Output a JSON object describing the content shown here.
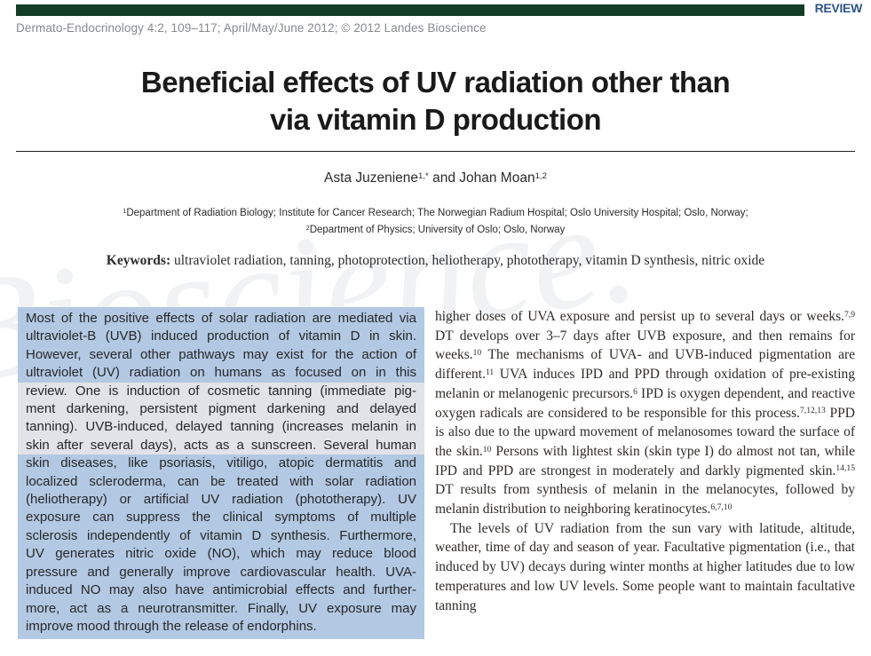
{
  "header": {
    "review_label": "REVIEW",
    "journal_line": "Dermato-Endocrinology 4:2, 109–117; April/May/June 2012; © 2012 Landes Bioscience"
  },
  "title": {
    "line1": "Beneficial effects of UV radiation other than",
    "line2": "via vitamin D production"
  },
  "authors": {
    "segments": [
      {
        "text": "Asta Juzeniene",
        "sup": "1,*"
      },
      {
        "text": " and Johan Moan",
        "sup": "1,2"
      }
    ]
  },
  "affiliations": [
    {
      "sup": "1",
      "text": "Department of Radiation Biology; Institute for Cancer Research; The Norwegian Radium Hospital; Oslo University Hospital; Oslo, Norway;"
    },
    {
      "sup": "2",
      "text": "Department of Physics; University of Oslo; Oslo, Norway"
    }
  ],
  "keywords": {
    "label": "Keywords:",
    "text": " ultraviolet radiation, tanning, photoprotection, heliotherapy, phototherapy, vitamin D synthesis, nitric oxide"
  },
  "abstract": {
    "lines": [
      {
        "text": "Most of the positive effects of solar radiation are mediated via",
        "highlighted": true
      },
      {
        "text": "ultraviolet-B (UVB) induced production of vitamin D in skin.",
        "highlighted": true
      },
      {
        "text": "However, several other pathways may exist for the action of",
        "highlighted": true
      },
      {
        "text": "ultraviolet (UV) radiation on humans as focused on in this",
        "highlighted": true
      },
      {
        "text": "review. One is induction of cosmetic tanning (immediate pig-",
        "highlighted": false
      },
      {
        "text": "ment darkening, persistent pigment darkening and delayed",
        "highlighted": false
      },
      {
        "text": "tanning). UVB-induced, delayed tanning (increases melanin in",
        "highlighted": false
      },
      {
        "text": "skin after several days), acts as a sunscreen. Several human",
        "highlighted": false
      },
      {
        "text": "skin diseases, like psoriasis, vitiligo, atopic dermatitis and",
        "highlighted": true
      },
      {
        "text": "localized scleroderma, can be treated with solar radiation",
        "highlighted": true
      },
      {
        "text": "(heliotherapy) or artificial UV radiation (phototherapy). UV",
        "highlighted": true
      },
      {
        "text": "exposure can suppress the clinical symptoms of multiple",
        "highlighted": true
      },
      {
        "text": "sclerosis independently of vitamin D synthesis. Furthermore,",
        "highlighted": true
      },
      {
        "text": "UV generates nitric oxide (NO), which may reduce blood",
        "highlighted": true
      },
      {
        "text": "pressure and generally improve cardiovascular health. UVA-",
        "highlighted": true
      },
      {
        "text": "induced NO may also have antimicrobial effects and further-",
        "highlighted": true
      },
      {
        "text": "more, act as a neurotransmitter. Finally, UV exposure may",
        "highlighted": true
      },
      {
        "text": "improve mood through the release of endorphins.",
        "highlighted": true
      }
    ]
  },
  "body": {
    "paragraphs": [
      {
        "indent": false,
        "segments": [
          {
            "text": "higher doses of UVA exposure and persist up to several days or weeks.",
            "sup": "7,9"
          },
          {
            "text": " DT develops over 3–7 days after UVB exposure, and then remains for weeks.",
            "sup": "10"
          },
          {
            "text": " The mechanisms of UVA- and UVB-induced pigmentation are different.",
            "sup": "11"
          },
          {
            "text": " UVA induces IPD and PPD through oxidation of pre-existing melanin or melanogenic precursors.",
            "sup": "6"
          },
          {
            "text": " IPD is oxygen dependent, and reactive oxygen radicals are considered to be responsible for this process.",
            "sup": "7,12,13"
          },
          {
            "text": " PPD is also due to the upward movement of melanosomes toward the surface of the skin.",
            "sup": "10"
          },
          {
            "text": " Persons with lightest skin (skin type I) do almost not tan, while IPD and PPD are strongest in moderately and darkly pigmented skin.",
            "sup": "14,15"
          },
          {
            "text": " DT results from synthesis of melanin in the melanocytes, followed by melanin distribution to neighboring keratinocytes.",
            "sup": "6,7,10"
          }
        ]
      },
      {
        "indent": true,
        "segments": [
          {
            "text": "The levels of UV radiation from the sun vary with latitude, altitude, weather, time of day and season of year. Facultative pigmentation (i.e., that induced by UV) decays during winter months at higher latitudes due to low temperatures and low UV levels. Some people want to maintain facultative tanning"
          }
        ]
      }
    ]
  },
  "watermark": {
    "text": "Bioscience."
  },
  "colors": {
    "header_band": "#133d26",
    "review_label": "#2d5588",
    "journal_line_gray": "#87898c",
    "abstract_box_bg": "#e0e3e7",
    "selection_highlight": "#b3c8e2",
    "body_text": "#2e2b28",
    "title_text": "#1a1a1a"
  }
}
